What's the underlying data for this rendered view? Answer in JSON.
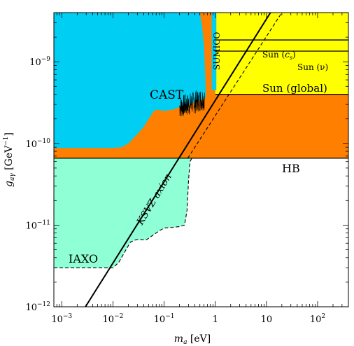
{
  "chart_data": {
    "type": "area",
    "xlabel_main": "m",
    "xlabel_sub": "a",
    "xlabel_unit": " [eV]",
    "ylabel_main": "g",
    "ylabel_sub": "aγ",
    "ylabel_unit": " [GeV",
    "ylabel_unit_exp": "−1",
    "ylabel_unit_close": "]",
    "x_scale": "log",
    "y_scale": "log",
    "xlim": [
      0.0007,
      400
    ],
    "ylim": [
      1e-12,
      4e-09
    ],
    "x_ticks": [
      {
        "value": 0.001,
        "base": "10",
        "exp": "−3"
      },
      {
        "value": 0.01,
        "base": "10",
        "exp": "−2"
      },
      {
        "value": 0.1,
        "base": "10",
        "exp": "−1"
      },
      {
        "value": 1,
        "base": "1",
        "exp": ""
      },
      {
        "value": 10,
        "base": "10",
        "exp": ""
      },
      {
        "value": 100,
        "base": "10",
        "exp": "2"
      }
    ],
    "y_ticks": [
      {
        "value": 1e-12,
        "base": "10",
        "exp": "−12"
      },
      {
        "value": 1e-11,
        "base": "10",
        "exp": "−11"
      },
      {
        "value": 1e-10,
        "base": "10",
        "exp": "−10"
      },
      {
        "value": 1e-09,
        "base": "10",
        "exp": "−9"
      }
    ],
    "colors": {
      "cast": "#00cff3",
      "sun": "#ffff00",
      "hb": "#ff7f00",
      "iaxo": "#8fffd6",
      "line": "#000000"
    },
    "regions": {
      "hb": {
        "g_min": 6.6e-11
      },
      "sun_global": {
        "g_min": 4e-10,
        "m_min": 1.0
      },
      "iaxo_sensitivity": [
        [
          0.0007,
          3e-12
        ],
        [
          0.01,
          3e-12
        ],
        [
          0.013,
          3.5e-12
        ],
        [
          0.018,
          5e-12
        ],
        [
          0.022,
          6.2e-12
        ],
        [
          0.028,
          6.6e-12
        ],
        [
          0.045,
          6.6e-12
        ],
        [
          0.06,
          7.5e-12
        ],
        [
          0.08,
          8.5e-12
        ],
        [
          0.1,
          9.2e-12
        ],
        [
          0.15,
          9.4e-12
        ],
        [
          0.2,
          9.6e-12
        ],
        [
          0.25,
          1e-11
        ],
        [
          0.28,
          1.5e-11
        ],
        [
          0.3,
          3.5e-11
        ],
        [
          0.32,
          6e-11
        ],
        [
          0.35,
          6.6e-11
        ]
      ],
      "cast_limit": [
        [
          0.0007,
          8.8e-11
        ],
        [
          0.01,
          8.8e-11
        ],
        [
          0.015,
          9e-11
        ],
        [
          0.02,
          1e-10
        ],
        [
          0.03,
          1.3e-10
        ],
        [
          0.04,
          1.6e-10
        ],
        [
          0.05,
          2e-10
        ],
        [
          0.06,
          2.4e-10
        ],
        [
          0.07,
          2.6e-10
        ],
        [
          0.1,
          2.5e-10
        ],
        [
          0.15,
          2.6e-10
        ],
        [
          0.2,
          2.8e-10
        ],
        [
          0.3,
          3e-10
        ],
        [
          0.4,
          3.2e-10
        ],
        [
          0.5,
          3.4e-10
        ],
        [
          0.6,
          3.5e-10
        ],
        [
          0.65,
          3.7e-10
        ]
      ],
      "cast_upper_edge": [
        [
          0.5,
          4e-09
        ],
        [
          0.55,
          2.8e-09
        ],
        [
          0.6,
          1.6e-09
        ],
        [
          0.65,
          5e-10
        ]
      ],
      "sumico_band": {
        "m_range": [
          0.85,
          1.05
        ],
        "g_range": [
          4.5e-10,
          4e-09
        ]
      }
    },
    "series": [
      {
        "name": "KSVZ axion",
        "style": "solid",
        "points": [
          [
            0.0029,
            1e-12
          ],
          [
            12,
            4e-09
          ]
        ]
      },
      {
        "style": "dashed",
        "points": [
          [
            0.29,
            6.6e-11
          ],
          [
            20,
            4e-09
          ]
        ]
      }
    ],
    "lines": [
      {
        "name": "Sun (global)",
        "g": 4e-10,
        "m_min": 1.0
      },
      {
        "name": "HB",
        "g": 6.6e-11,
        "m_min": 0.0007
      },
      {
        "name": "Sun (ν)",
        "g": 1.35e-09,
        "m_min": 1.0
      },
      {
        "name": "Sun (cs)",
        "g": 1.85e-09,
        "m_min": 1.0
      }
    ],
    "annotations": {
      "cast": "CAST",
      "sumico": "SUMICO",
      "sun_cs_main": "Sun (",
      "sun_cs_var": "c",
      "sun_cs_sub": "s",
      "sun_cs_close": ")",
      "sun_nu": "Sun (ν)",
      "sun_global": "Sun (global)",
      "hb": "HB",
      "iaxo": "IAXO",
      "ksvz": "KSVZ axion"
    }
  }
}
